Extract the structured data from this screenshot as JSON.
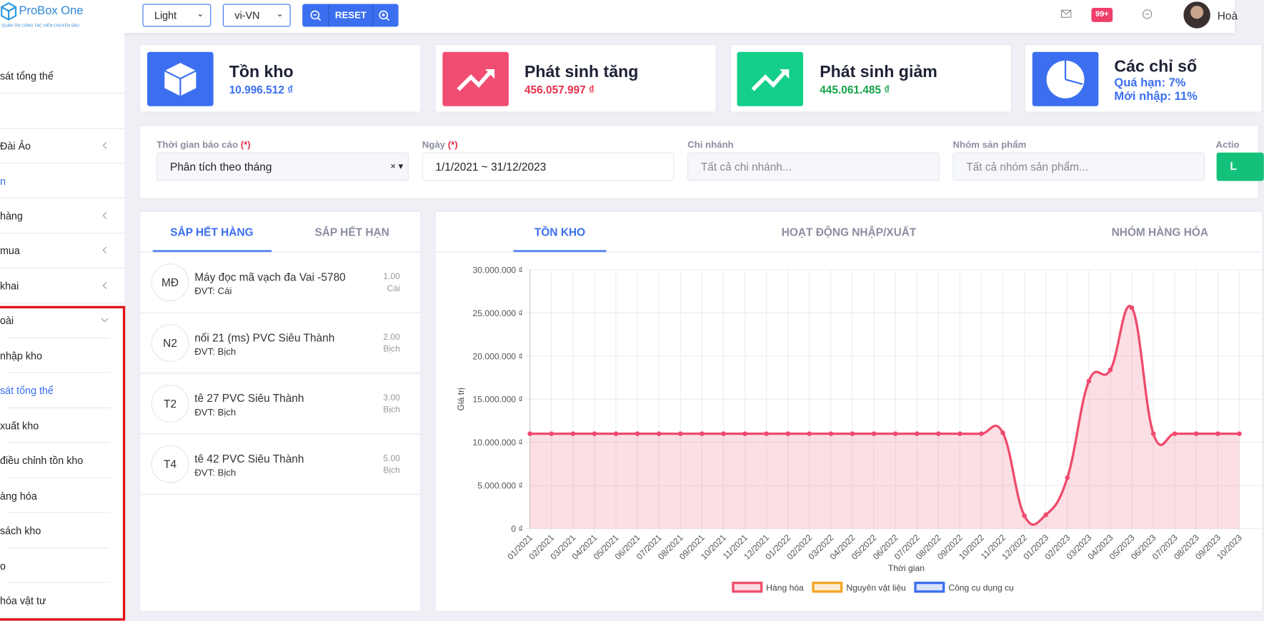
{
  "header": {
    "logo": "ProBox One",
    "tagline": "QUẢN TRỊ CỘNG TÁC VIÊN CHUYÊN SÂU",
    "theme": "Light",
    "language": "vi-VN",
    "reset": "RESET",
    "badge": "99+",
    "user": "Hoà"
  },
  "sidebar": {
    "items": [
      "sát tổng thể",
      "Đài Ảo",
      "n",
      "hàng",
      "mua",
      "khai",
      "oài",
      "nhập kho",
      "sát tổng thể",
      "xuất kho",
      "điều chỉnh tồn kho",
      "àng hóa",
      "sách kho",
      "o",
      "hóa vật tư"
    ]
  },
  "cards": [
    {
      "title": "Tồn kho",
      "value": "10.996.512 ₫"
    },
    {
      "title": "Phát sinh tăng",
      "value": "456.057.997 ₫"
    },
    {
      "title": "Phát sinh giảm",
      "value": "445.061.485 ₫"
    },
    {
      "title": "Các chỉ số",
      "lines": [
        "Quá hạn: 7%",
        "Mới nhập: 11%"
      ]
    }
  ],
  "filters": [
    {
      "label": "Thời gian báo cáo",
      "required": "(*)",
      "value": "Phân tích theo tháng"
    },
    {
      "label": "Ngày",
      "required": "(*)",
      "value": "1/1/2021 ~ 31/12/2023"
    },
    {
      "label": "Chi nhánh",
      "placeholder": "Tất cả chi nhánh..."
    },
    {
      "label": "Nhóm sản phẩm",
      "placeholder": "Tất cả nhóm sản phẩm..."
    },
    {
      "label": "Actio",
      "button": "L"
    }
  ],
  "stock_panel": {
    "tabs": [
      "SẮP HẾT HÀNG",
      "SẮP HẾT HẠN"
    ],
    "items": [
      {
        "initials": "MĐ",
        "name": "Máy đọc mã vạch đa Vai -5780",
        "unit": "ĐVT: Cái",
        "qty": "1.00",
        "qty_unit": "Cái"
      },
      {
        "initials": "N2",
        "name": "nối 21 (ms) PVC Siêu Thành",
        "unit": "ĐVT: Bịch",
        "qty": "2.00",
        "qty_unit": "Bịch"
      },
      {
        "initials": "T2",
        "name": "tê 27 PVC Siêu Thành",
        "unit": "ĐVT: Bịch",
        "qty": "3.00",
        "qty_unit": "Bịch"
      },
      {
        "initials": "T4",
        "name": "tê 42 PVC Siêu Thành",
        "unit": "ĐVT: Bịch",
        "qty": "5.00",
        "qty_unit": "Bịch"
      }
    ]
  },
  "chart_tabs": [
    "TỒN KHO",
    "HOẠT ĐỘNG NHẬP/XUẤT",
    "NHÓM HÀNG HÓA"
  ],
  "chart_data": {
    "type": "line",
    "x_label": "Thời gian",
    "y_label": "Giá trị",
    "categories": [
      "01/2021",
      "02/2021",
      "03/2021",
      "04/2021",
      "05/2021",
      "06/2021",
      "07/2021",
      "08/2021",
      "09/2021",
      "10/2021",
      "11/2021",
      "12/2021",
      "01/2022",
      "02/2022",
      "03/2022",
      "04/2022",
      "05/2022",
      "06/2022",
      "07/2022",
      "08/2022",
      "09/2022",
      "10/2022",
      "11/2022",
      "12/2022",
      "01/2023",
      "02/2023",
      "03/2023",
      "04/2023",
      "05/2023",
      "06/2023",
      "07/2023",
      "08/2023",
      "09/2023",
      "10/2023"
    ],
    "series": [
      {
        "name": "Hàng hóa",
        "color": "#ef4b6c",
        "values": [
          11000000,
          11000000,
          11000000,
          11000000,
          11000000,
          11000000,
          11000000,
          11000000,
          11000000,
          11000000,
          11000000,
          11000000,
          11000000,
          11000000,
          11000000,
          11000000,
          11000000,
          11000000,
          11000000,
          11000000,
          11000000,
          11000000,
          11100000,
          1500000,
          1600000,
          5900000,
          17100000,
          18400000,
          25600000,
          11000000,
          11000000,
          11000000,
          11000000,
          11000000
        ]
      },
      {
        "name": "Nguyên vật liệu",
        "color": "#f5a623",
        "values": [
          null,
          null,
          null,
          null,
          null,
          null,
          null,
          null,
          null,
          null,
          null,
          null,
          null,
          null,
          null,
          null,
          null,
          null,
          null,
          null,
          null,
          null,
          null,
          null,
          null,
          null,
          null,
          null,
          null,
          null,
          null,
          null,
          null,
          null
        ]
      },
      {
        "name": "Công cụ dụng cụ",
        "color": "#3b6ff0",
        "values": [
          null,
          null,
          null,
          null,
          null,
          null,
          null,
          null,
          null,
          null,
          null,
          null,
          null,
          null,
          null,
          null,
          null,
          null,
          null,
          null,
          null,
          null,
          null,
          null,
          null,
          null,
          null,
          null,
          null,
          null,
          null,
          null,
          null,
          null
        ]
      }
    ],
    "ylim": [
      0,
      30000000
    ],
    "yticks": [
      {
        "value": 0,
        "label": "0 ₫"
      },
      {
        "value": 5000000,
        "label": "5.000.000 ₫"
      },
      {
        "value": 10000000,
        "label": "10.000.000 ₫"
      },
      {
        "value": 15000000,
        "label": "15.000.000 ₫"
      },
      {
        "value": 20000000,
        "label": "20.000.000 ₫"
      },
      {
        "value": 25000000,
        "label": "25.000.000 ₫"
      },
      {
        "value": 30000000,
        "label": "30.000.000 ₫"
      }
    ],
    "grid": true,
    "area": true
  }
}
